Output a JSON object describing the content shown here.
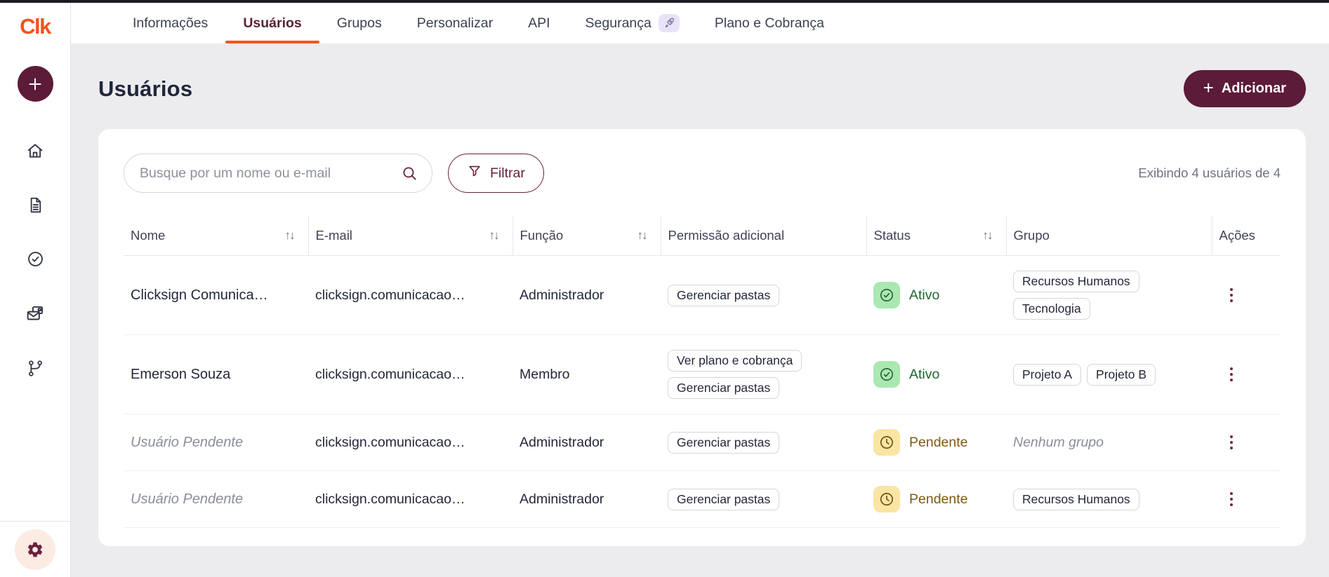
{
  "brand": {
    "logo_text": "Clk"
  },
  "colors": {
    "brand_orange": "#f2571d",
    "primary_maroon": "#5c1b38",
    "active_green_text": "#1d6730",
    "active_green_bg": "#a9e8b1",
    "pending_amber_text": "#7d5a13",
    "pending_amber_bg": "#fbe5a3"
  },
  "sidebar": {
    "new_button_icon": "plus-icon",
    "items": [
      {
        "icon": "home-icon"
      },
      {
        "icon": "document-icon"
      },
      {
        "icon": "check-circle-icon"
      },
      {
        "icon": "mail-stack-icon"
      },
      {
        "icon": "branch-icon"
      }
    ],
    "settings_icon": "gear-icon"
  },
  "tabs": [
    {
      "label": "Informações"
    },
    {
      "label": "Usuários",
      "active": true
    },
    {
      "label": "Grupos"
    },
    {
      "label": "Personalizar"
    },
    {
      "label": "API"
    },
    {
      "label": "Segurança",
      "badge_icon": "rocket-icon"
    },
    {
      "label": "Plano e Cobrança"
    }
  ],
  "page": {
    "title": "Usuários",
    "add_button_label": "Adicionar"
  },
  "toolbar": {
    "search_placeholder": "Busque por um nome ou e-mail",
    "search_icon": "search-icon",
    "filter_label": "Filtrar",
    "filter_icon": "funnel-icon",
    "results_text": "Exibindo 4 usuários de 4"
  },
  "table": {
    "columns": [
      {
        "label": "Nome",
        "sortable": true
      },
      {
        "label": "E-mail",
        "sortable": true
      },
      {
        "label": "Função",
        "sortable": true
      },
      {
        "label": "Permissão adicional",
        "sortable": false
      },
      {
        "label": "Status",
        "sortable": true
      },
      {
        "label": "Grupo",
        "sortable": false
      },
      {
        "label": "Ações",
        "sortable": false
      }
    ],
    "rows": [
      {
        "name": "Clicksign Comunica…",
        "pending": false,
        "email": "clicksign.comunicacao…",
        "role": "Administrador",
        "permissions": [
          "Gerenciar pastas"
        ],
        "status": {
          "label": "Ativo",
          "type": "active"
        },
        "groups": [
          "Recursos Humanos",
          "Tecnologia"
        ],
        "groups_layout": "stack",
        "empty_group_text": null
      },
      {
        "name": "Emerson Souza",
        "pending": false,
        "email": "clicksign.comunicacao…",
        "role": "Membro",
        "permissions": [
          "Ver plano e cobrança",
          "Gerenciar pastas"
        ],
        "status": {
          "label": "Ativo",
          "type": "active"
        },
        "groups": [
          "Projeto A",
          "Projeto B"
        ],
        "groups_layout": "row",
        "empty_group_text": null
      },
      {
        "name": "Usuário Pendente",
        "pending": true,
        "email": "clicksign.comunicacao…",
        "role": "Administrador",
        "permissions": [
          "Gerenciar pastas"
        ],
        "status": {
          "label": "Pendente",
          "type": "pending"
        },
        "groups": [],
        "groups_layout": "row",
        "empty_group_text": "Nenhum grupo"
      },
      {
        "name": "Usuário Pendente",
        "pending": true,
        "email": "clicksign.comunicacao…",
        "role": "Administrador",
        "permissions": [
          "Gerenciar pastas"
        ],
        "status": {
          "label": "Pendente",
          "type": "pending"
        },
        "groups": [
          "Recursos Humanos"
        ],
        "groups_layout": "row",
        "empty_group_text": null
      }
    ]
  }
}
